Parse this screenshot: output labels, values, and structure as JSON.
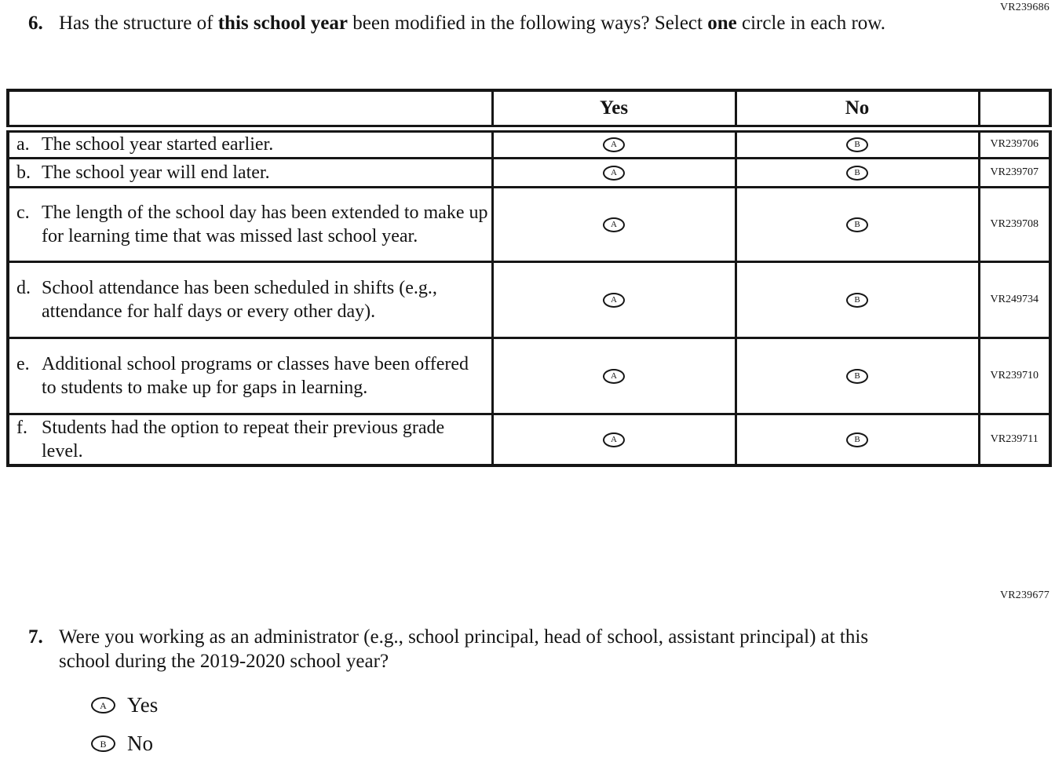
{
  "codes": {
    "top": "VR239686",
    "mid": "VR239677"
  },
  "q6": {
    "number": "6.",
    "segments": [
      {
        "text": "Has the structure of ",
        "bold": false
      },
      {
        "text": "this school year",
        "bold": true
      },
      {
        "text": " been modified in the following ways? Select ",
        "bold": false
      },
      {
        "text": "one",
        "bold": true
      },
      {
        "text": " circle in each row.",
        "bold": false
      }
    ],
    "table": {
      "header_yes": "Yes",
      "header_no": "No",
      "yes_letter": "A",
      "no_letter": "B",
      "rows": [
        {
          "letter": "a.",
          "statement": "The school year started earlier.",
          "code": "VR239706"
        },
        {
          "letter": "b.",
          "statement": "The school year will end later.",
          "code": "VR239707"
        },
        {
          "letter": "c.",
          "statement": "The length of the school day has been extended to make up for learning time that was missed last school year.",
          "code": "VR239708"
        },
        {
          "letter": "d.",
          "statement": "School attendance has been scheduled in shifts (e.g., attendance for half days or every other day).",
          "code": "VR249734"
        },
        {
          "letter": "e.",
          "statement": "Additional school programs or classes have been offered to students to make up for gaps in learning.",
          "code": "VR239710"
        },
        {
          "letter": "f.",
          "statement": "Students had the option to repeat their previous grade level.",
          "code": "VR239711"
        }
      ]
    }
  },
  "q7": {
    "number": "7.",
    "text": "Were you working as an administrator (e.g., school principal, head of school, assistant principal) at this school during the 2019-2020 school year?",
    "options": [
      {
        "letter": "A",
        "label": "Yes"
      },
      {
        "letter": "B",
        "label": "No"
      }
    ]
  }
}
